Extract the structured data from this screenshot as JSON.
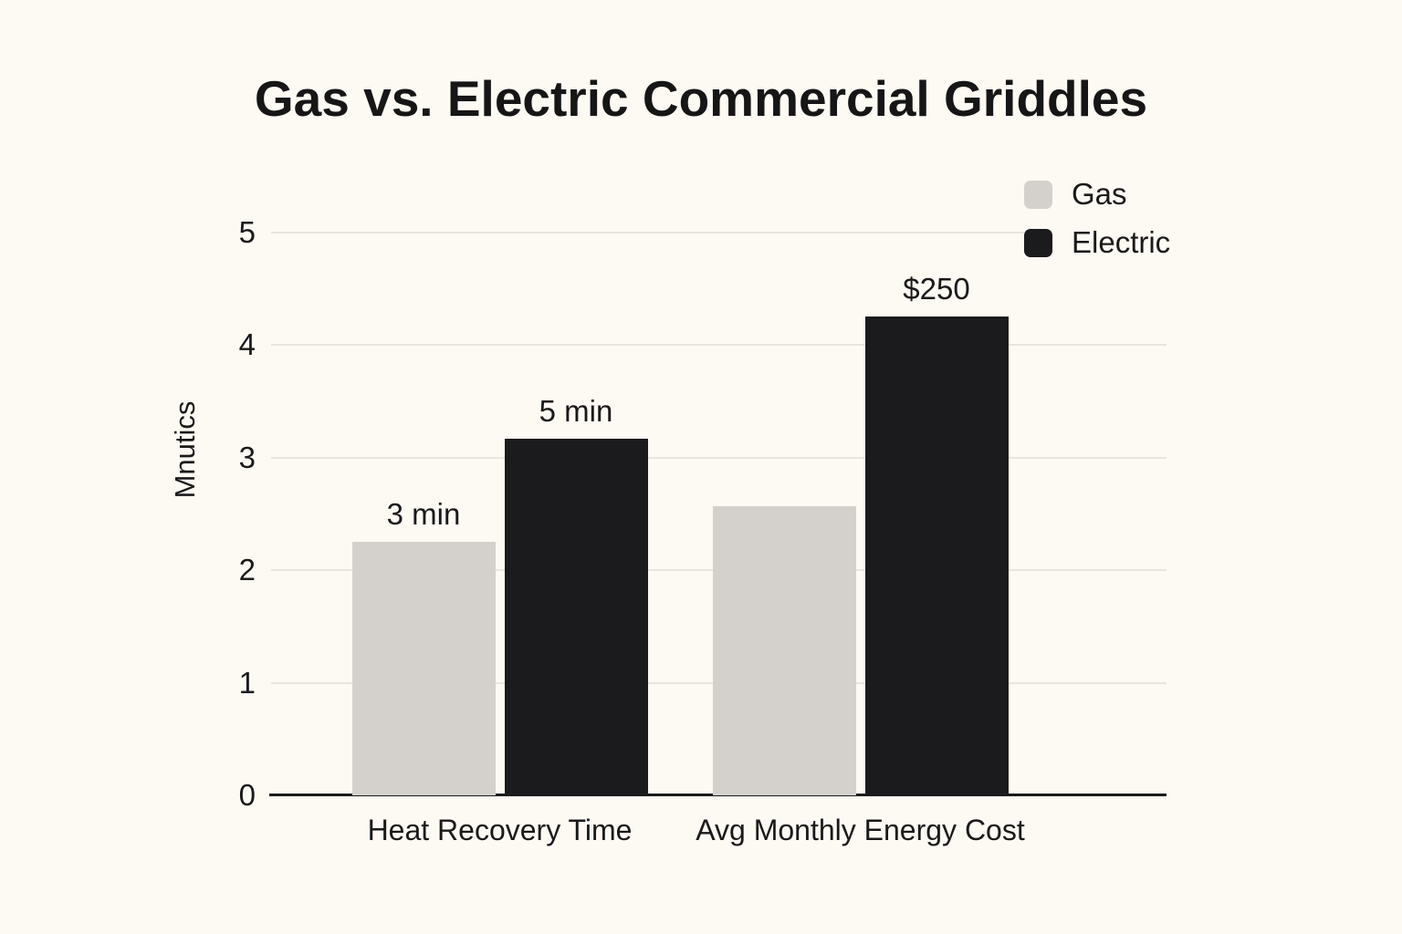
{
  "title": "Gas vs. Electric Commercial Griddles",
  "colors": {
    "background": "#fdf9f3",
    "gas": "#d4d1cd",
    "electric": "#1b1a1c",
    "gridline": "#e8e4de",
    "axis": "#1a1a1a",
    "text": "#1a1a1a"
  },
  "legend": {
    "position": "top-right",
    "items": [
      {
        "label": "Gas",
        "color": "#d4d1cd"
      },
      {
        "label": "Electric",
        "color": "#1b1a1c"
      }
    ]
  },
  "chart_data": {
    "type": "bar",
    "title": "Gas vs. Electric Commercial Griddles",
    "categories": [
      "Heat Recovery Time",
      "Avg Monthly Energy Cost"
    ],
    "series": [
      {
        "name": "Gas",
        "color": "#d4d1cd",
        "values": [
          2.25,
          2.57
        ],
        "bar_labels": [
          "3 min",
          ""
        ]
      },
      {
        "name": "Electric",
        "color": "#1b1a1c",
        "values": [
          3.17,
          4.25
        ],
        "bar_labels": [
          "5 min",
          "$250"
        ]
      }
    ],
    "xlabel": "",
    "ylabel": "Mnutics",
    "ylim": [
      0,
      5
    ],
    "yticks": [
      0,
      1,
      2,
      3,
      4,
      5
    ],
    "grid": true,
    "legend_position": "top-right"
  }
}
